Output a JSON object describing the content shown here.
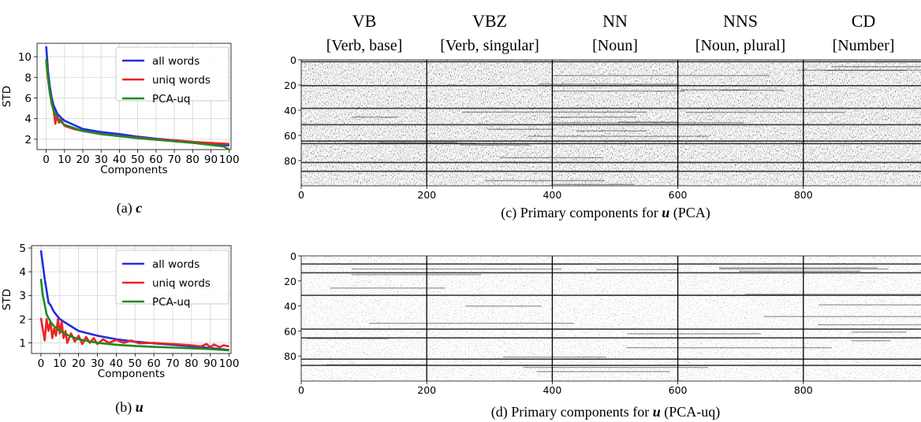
{
  "chart_data": [
    {
      "id": "a",
      "type": "line",
      "caption_letter": "(a)",
      "caption_symbol": "c",
      "xlabel": "Components",
      "ylabel": "STD",
      "xlim": [
        -5,
        101
      ],
      "ylim": [
        1.0,
        11.3
      ],
      "xticks": [
        0,
        10,
        20,
        30,
        40,
        50,
        60,
        70,
        80,
        90,
        100
      ],
      "yticks": [
        2,
        4,
        6,
        8,
        10
      ],
      "grid": true,
      "legend_position": "top-right",
      "series": [
        {
          "name": "all words",
          "color": "#1f2ee0",
          "x": [
            0,
            1,
            2,
            3,
            4,
            5,
            6,
            8,
            10,
            15,
            20,
            30,
            40,
            50,
            60,
            70,
            80,
            90,
            100
          ],
          "y": [
            11.0,
            8.6,
            7.1,
            6.0,
            5.3,
            4.9,
            4.5,
            4.1,
            3.8,
            3.4,
            3.0,
            2.7,
            2.5,
            2.25,
            2.05,
            1.9,
            1.75,
            1.6,
            1.4
          ]
        },
        {
          "name": "uniq words",
          "color": "#ee2222",
          "x": [
            0,
            1,
            2,
            3,
            4,
            5,
            6,
            7,
            8,
            10,
            15,
            20,
            30,
            40,
            50,
            60,
            70,
            80,
            90,
            100
          ],
          "y": [
            9.6,
            7.8,
            6.5,
            5.5,
            4.8,
            3.5,
            4.3,
            3.6,
            3.9,
            3.3,
            3.0,
            2.8,
            2.5,
            2.3,
            2.15,
            2.0,
            1.9,
            1.75,
            1.65,
            1.55
          ]
        },
        {
          "name": "PCA-uq",
          "color": "#1e8a1e",
          "x": [
            0,
            1,
            2,
            3,
            4,
            5,
            6,
            8,
            10,
            15,
            20,
            30,
            40,
            50,
            60,
            70,
            80,
            90,
            97,
            100
          ],
          "y": [
            9.8,
            8.0,
            6.6,
            5.4,
            4.8,
            4.4,
            4.1,
            3.7,
            3.4,
            3.1,
            2.8,
            2.5,
            2.3,
            2.1,
            1.95,
            1.8,
            1.65,
            1.45,
            1.3,
            1.0
          ]
        }
      ]
    },
    {
      "id": "b",
      "type": "line",
      "caption_letter": "(b)",
      "caption_symbol": "u",
      "xlabel": "Components",
      "ylabel": "STD",
      "xlim": [
        -5,
        101
      ],
      "ylim": [
        0.55,
        5.1
      ],
      "xticks": [
        0,
        10,
        20,
        30,
        40,
        50,
        60,
        70,
        80,
        90,
        100
      ],
      "yticks": [
        1,
        2,
        3,
        4,
        5
      ],
      "grid": true,
      "legend_position": "top-right",
      "series": [
        {
          "name": "all words",
          "color": "#1f2ee0",
          "x": [
            0,
            1,
            2,
            3,
            4,
            5,
            7,
            10,
            15,
            20,
            30,
            40,
            50,
            60,
            70,
            80,
            90,
            100
          ],
          "y": [
            4.9,
            4.3,
            3.7,
            3.2,
            2.7,
            2.6,
            2.3,
            2.0,
            1.75,
            1.5,
            1.3,
            1.15,
            1.05,
            0.98,
            0.92,
            0.85,
            0.78,
            0.7
          ]
        },
        {
          "name": "uniq words",
          "color": "#ee2222",
          "x": [
            0,
            2,
            3,
            4,
            5,
            6,
            7,
            8,
            9,
            10,
            11,
            12,
            13,
            14,
            16,
            18,
            20,
            22,
            24,
            26,
            28,
            30,
            33,
            36,
            40,
            44,
            48,
            52,
            60,
            70,
            80,
            85,
            88,
            90,
            92,
            95,
            97,
            100
          ],
          "y": [
            2.05,
            1.1,
            2.0,
            1.5,
            1.9,
            1.2,
            1.6,
            1.3,
            2.0,
            1.4,
            1.9,
            1.2,
            1.5,
            1.0,
            1.4,
            1.05,
            1.3,
            0.95,
            1.25,
            1.0,
            1.2,
            0.95,
            1.15,
            1.0,
            1.12,
            1.0,
            1.1,
            0.98,
            1.0,
            0.95,
            0.9,
            0.85,
            0.95,
            0.82,
            0.93,
            0.82,
            0.9,
            0.85
          ]
        },
        {
          "name": "PCA-uq",
          "color": "#1e8a1e",
          "x": [
            0,
            1,
            2,
            3,
            5,
            7,
            10,
            15,
            20,
            30,
            40,
            50,
            60,
            70,
            80,
            90,
            100
          ],
          "y": [
            3.7,
            3.0,
            2.6,
            2.2,
            1.9,
            1.7,
            1.5,
            1.3,
            1.15,
            1.0,
            0.92,
            0.87,
            0.83,
            0.8,
            0.77,
            0.74,
            0.68
          ]
        }
      ]
    },
    {
      "id": "c",
      "type": "heatmap",
      "caption_letter": "(c)",
      "caption_text": "Primary components for",
      "caption_symbol": "u",
      "caption_suffix": "(PCA)",
      "xlim": [
        0,
        1000
      ],
      "ylim": [
        0,
        100
      ],
      "xticks": [
        0,
        200,
        400,
        600,
        800
      ],
      "yticks": [
        0,
        20,
        40,
        60,
        80
      ],
      "colormap": "grayscale (white = low, black = high)",
      "dark_row_bands": [
        [
          1,
          2
        ],
        [
          20,
          21
        ],
        [
          38,
          39
        ],
        [
          51,
          52
        ],
        [
          64,
          65
        ],
        [
          66,
          67
        ],
        [
          81,
          82
        ],
        [
          88,
          89
        ]
      ]
    },
    {
      "id": "d",
      "type": "heatmap",
      "caption_letter": "(d)",
      "caption_text": "Primary components for",
      "caption_symbol": "u",
      "caption_suffix": "(PCA-uq)",
      "xlim": [
        0,
        1000
      ],
      "ylim": [
        0,
        100
      ],
      "xticks": [
        0,
        200,
        400,
        600,
        800
      ],
      "yticks": [
        0,
        20,
        40,
        60,
        80
      ],
      "colormap": "grayscale (white = low, black = high)",
      "dark_row_bands": [
        [
          6,
          7
        ],
        [
          13,
          14
        ],
        [
          31,
          32
        ],
        [
          58,
          59
        ],
        [
          65,
          66
        ],
        [
          82,
          83
        ],
        [
          87,
          88
        ]
      ]
    }
  ],
  "pos_groups": [
    {
      "tag": "VB",
      "desc": "[Verb, base]"
    },
    {
      "tag": "VBZ",
      "desc": "[Verb, singular]"
    },
    {
      "tag": "NN",
      "desc": "[Noun]"
    },
    {
      "tag": "NNS",
      "desc": "[Noun, plural]"
    },
    {
      "tag": "CD",
      "desc": "[Number]"
    }
  ]
}
